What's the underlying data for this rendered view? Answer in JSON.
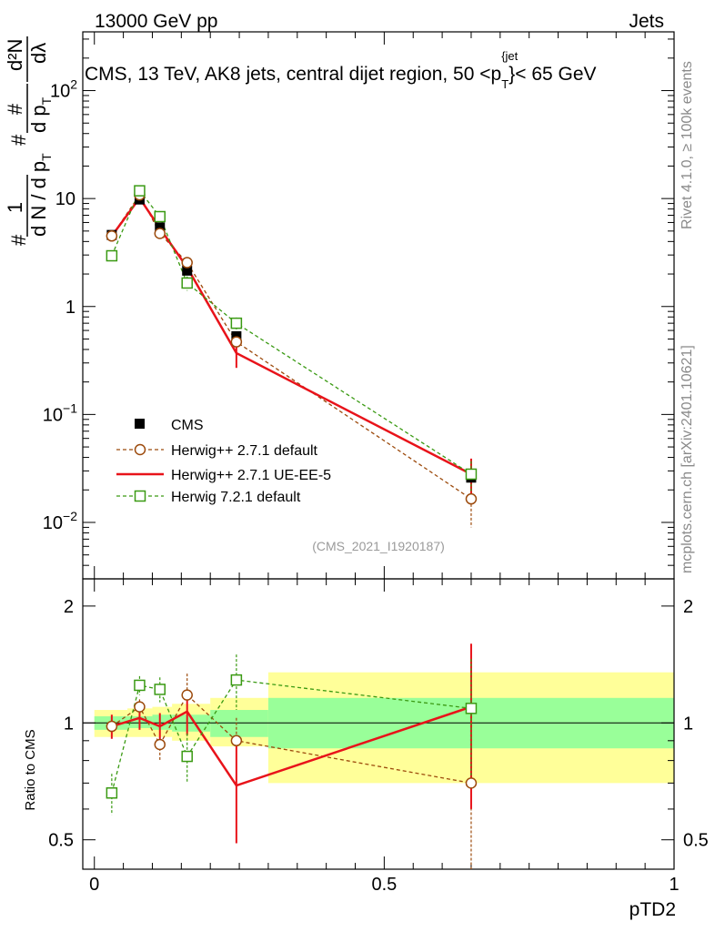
{
  "header": {
    "left": "13000 GeV pp",
    "right": "Jets"
  },
  "side_labels": {
    "rivet": "Rivet 4.1.0, ≥ 100k events",
    "mcplots": "mcplots.cern.ch [arXiv:2401.10621]"
  },
  "reference": "(CMS_2021_I1920187)",
  "chart_data": [
    {
      "type": "line",
      "panel": "main",
      "title": "CMS, 13 TeV, AK8 jets, central dijet region, 50 < p_T^{jet} < 65 GeV",
      "title_parts": {
        "text": "CMS, 13 TeV, AK8 jets, central dijet region, 50 <p",
        "sup": "{jet",
        "sub": "T",
        "tail": "}< 65 GeV"
      },
      "ylabel": "1/dN/dp_T  d²N/dp_T dλ",
      "ylabel_parts": {
        "num1": "1",
        "den1": "d N / d p",
        "den1_sub": "T",
        "num2": "d²N",
        "den2": "d p",
        "den2_sub": "T",
        "den2_tail": " dλ",
        "hash": "#"
      },
      "yscale": "log",
      "ylim": [
        0.003,
        350
      ],
      "y_ticks": [
        {
          "value": 0.01,
          "base": "10",
          "exp": "−2"
        },
        {
          "value": 0.1,
          "base": "10",
          "exp": "−1"
        },
        {
          "value": 1,
          "base": "1",
          "exp": ""
        },
        {
          "value": 10,
          "base": "10",
          "exp": ""
        },
        {
          "value": 100,
          "base": "10",
          "exp": "2"
        }
      ],
      "xlim": [
        -0.02,
        1.0
      ],
      "bin_edges": [
        0.0,
        0.057,
        0.1,
        0.134,
        0.2,
        0.3,
        1.0
      ],
      "bin_centers": [
        0.03,
        0.078,
        0.113,
        0.16,
        0.245,
        0.65
      ],
      "data": {
        "name": "CMS",
        "values": [
          4.6,
          9.8,
          5.4,
          2.15,
          0.53,
          0.026
        ]
      },
      "series": [
        {
          "name": "Herwig++ 2.7.1 default",
          "color": "#9c4a0c",
          "style": "dashed",
          "marker": "circle",
          "values": [
            4.5,
            10.8,
            4.75,
            2.55,
            0.47,
            0.0165
          ],
          "errors": [
            0.3,
            0.5,
            0.35,
            0.25,
            0.06,
            0.0075
          ]
        },
        {
          "name": "Herwig++ 2.7.1 UE-EE-5",
          "color": "#e8131a",
          "style": "solid",
          "marker": "none",
          "values": [
            4.5,
            10.1,
            5.3,
            2.3,
            0.37,
            0.028
          ],
          "errors": [
            0.3,
            0.6,
            0.4,
            0.3,
            0.1,
            0.011
          ]
        },
        {
          "name": "Herwig 7.2.1 default",
          "color": "#3a9a13",
          "style": "dashed",
          "marker": "square",
          "values": [
            2.95,
            11.8,
            6.8,
            1.65,
            0.7,
            0.028
          ],
          "errors": [
            0.2,
            0.5,
            0.4,
            0.25,
            0.09,
            0.009
          ]
        }
      ],
      "legend": "left-middle"
    },
    {
      "type": "line",
      "panel": "ratio",
      "ylabel": "Ratio to CMS",
      "yscale": "log",
      "ylim": [
        0.42,
        2.35
      ],
      "y_ticks": [
        0.5,
        1,
        2
      ],
      "y_tick_labels": [
        "0.5",
        "1",
        "2"
      ],
      "xlabel": "pTD2",
      "x_ticks": [
        0,
        0.5,
        1
      ],
      "x_tick_labels": [
        "0",
        "0.5",
        "1"
      ],
      "bin_edges": [
        0.0,
        0.057,
        0.1,
        0.134,
        0.2,
        0.3,
        1.0
      ],
      "band_stat": [
        [
          0.96,
          1.04
        ],
        [
          0.97,
          1.04
        ],
        [
          0.96,
          1.05
        ],
        [
          0.95,
          1.05
        ],
        [
          0.92,
          1.08
        ],
        [
          0.86,
          1.16
        ]
      ],
      "band_total": [
        [
          0.92,
          1.08
        ],
        [
          0.92,
          1.09
        ],
        [
          0.92,
          1.1
        ],
        [
          0.9,
          1.12
        ],
        [
          0.87,
          1.16
        ],
        [
          0.7,
          1.35
        ]
      ],
      "series": [
        {
          "name": "Herwig++ 2.7.1 default",
          "values": [
            0.98,
            1.1,
            0.88,
            1.18,
            0.9,
            0.7
          ],
          "errors": [
            0.06,
            0.05,
            0.08,
            0.16,
            0.13,
            0.31
          ]
        },
        {
          "name": "Herwig++ 2.7.1 UE-EE-5",
          "values": [
            0.98,
            1.03,
            0.98,
            1.07,
            0.69,
            1.1
          ],
          "errors": [
            0.07,
            0.07,
            0.08,
            0.14,
            0.2,
            0.5
          ]
        },
        {
          "name": "Herwig 7.2.1 default",
          "values": [
            0.66,
            1.25,
            1.22,
            0.82,
            1.29,
            1.09
          ],
          "errors": [
            0.08,
            0.07,
            0.09,
            0.12,
            0.21,
            0.37
          ]
        }
      ]
    }
  ]
}
